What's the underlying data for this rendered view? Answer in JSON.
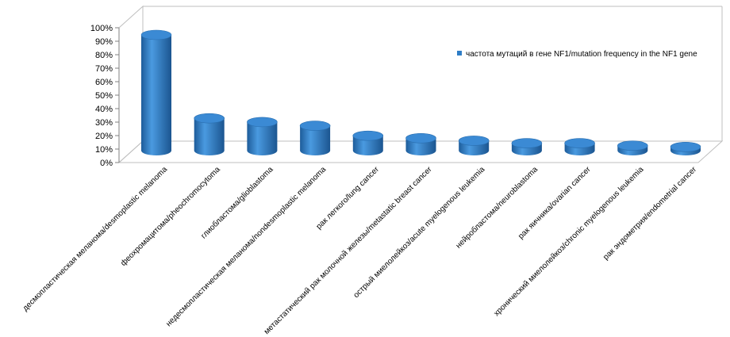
{
  "chart_data": {
    "type": "bar",
    "style": "3d-cylinder",
    "categories": [
      "десмопластическая меланома/desmoplastic melanoma",
      "феохромацитома/pheochromocytoma",
      "глиобластома/glioblastoma",
      "недесмопластическая меланома/nondesmoplastic melanoma",
      "рак легкого/lung cancer",
      "метастатический рак молочной железы/metastatic breast cancer",
      "острый миелолейкоз/acute myelogenous leukemia",
      "нейробластома/neuroblastoma",
      "рак яичника/ovarian cancer",
      "хронический миелолейкоз/chronic myelogenous leukemia",
      "рак эндометрия/endometrial cancer"
    ],
    "series": [
      {
        "name": "частота мутаций в гене NF1/mutation frequency in the NF1 gene",
        "values": [
          0.93,
          0.26,
          0.23,
          0.2,
          0.12,
          0.1,
          0.08,
          0.06,
          0.06,
          0.04,
          0.03
        ],
        "color": "#2e7dc6"
      }
    ],
    "y_ticks": [
      "0%",
      "10%",
      "20%",
      "30%",
      "40%",
      "50%",
      "60%",
      "70%",
      "80%",
      "90%",
      "100%"
    ],
    "ylim": [
      0,
      1
    ],
    "grid": false,
    "legend_position": "top-right"
  }
}
